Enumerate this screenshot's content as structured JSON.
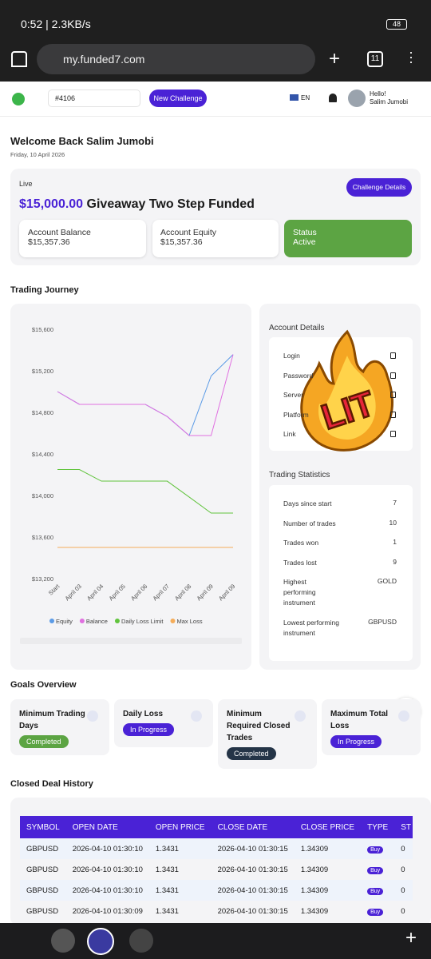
{
  "status_bar": {
    "time": "0:52 | 2.3KB/s",
    "battery": "48"
  },
  "browser": {
    "url": "my.funded7.com",
    "tabs": "11"
  },
  "header": {
    "account": "#4106",
    "new_challenge": "New Challenge",
    "language": "EN",
    "greeting": "Hello!",
    "user": "Salim Jumobi"
  },
  "welcome": {
    "title": "Welcome Back Salim Jumobi",
    "date": "Friday, 10 April 2026"
  },
  "challenge": {
    "status_tag": "Live",
    "amount": "$15,000.00",
    "name": "Giveaway Two Step Funded",
    "details_button": "Challenge Details",
    "balance_label": "Account Balance",
    "balance": "$15,357.36",
    "equity_label": "Account Equity",
    "equity": "$15,357.36",
    "status_label": "Status",
    "status": "Active"
  },
  "trading_journey": {
    "title": "Trading Journey"
  },
  "chart_data": {
    "type": "line",
    "categories": [
      "Start",
      "April 03",
      "April 04",
      "April 05",
      "April 06",
      "April 07",
      "April 08",
      "April 09",
      "April 09"
    ],
    "series": [
      {
        "name": "Equity",
        "color": "#5b9be6",
        "values": [
          15000,
          14877,
          14877,
          14877,
          14877,
          14760,
          14577,
          15150,
          15357
        ]
      },
      {
        "name": "Balance",
        "color": "#e070e0",
        "values": [
          15000,
          14877,
          14877,
          14877,
          14877,
          14760,
          14577,
          14577,
          15357
        ]
      },
      {
        "name": "Daily Loss Limit",
        "color": "#62c43e",
        "values": [
          14250,
          14250,
          14138,
          14138,
          14138,
          14138,
          13985,
          13831,
          13831
        ]
      },
      {
        "name": "Max Loss",
        "color": "#f5ad5a",
        "values": [
          13500,
          13500,
          13500,
          13500,
          13500,
          13500,
          13500,
          13500,
          13500
        ]
      }
    ],
    "ylim": [
      13200,
      15600
    ],
    "yticks": [
      {
        "value": 13200,
        "label": "$13,200"
      },
      {
        "value": 13600,
        "label": "$13,600"
      },
      {
        "value": 14000,
        "label": "$14,000"
      },
      {
        "value": 14400,
        "label": "$14,400"
      },
      {
        "value": 14800,
        "label": "$14,800"
      },
      {
        "value": 15200,
        "label": "$15,200"
      },
      {
        "value": 15600,
        "label": "$15,600"
      }
    ],
    "grid": false,
    "legend": "bottom"
  },
  "account_details": {
    "title": "Account Details",
    "fields": [
      "Login",
      "Password",
      "Server",
      "Platform",
      "Link"
    ]
  },
  "sticker": "LIT",
  "trading_statistics": {
    "title": "Trading Statistics",
    "rows": [
      [
        "Days since start",
        "7"
      ],
      [
        "Number of trades",
        "10"
      ],
      [
        "Trades won",
        "1"
      ],
      [
        "Trades lost",
        "9"
      ],
      [
        "Highest performing instrument",
        "GOLD"
      ],
      [
        "Lowest performing instrument",
        "GBPUSD"
      ]
    ]
  },
  "goals": {
    "title": "Goals Overview",
    "items": [
      {
        "name": "Minimum Trading Days",
        "status": "Completed"
      },
      {
        "name": "Daily Loss",
        "status": "In Progress"
      },
      {
        "name": "Minimum Required Closed Trades",
        "status": "Completed"
      },
      {
        "name": "Maximum Total Loss",
        "status": "In Progress"
      }
    ]
  },
  "deals": {
    "title": "Closed Deal History",
    "columns": [
      "SYMBOL",
      "OPEN DATE",
      "OPEN PRICE",
      "CLOSE DATE",
      "CLOSE PRICE",
      "TYPE",
      "ST"
    ],
    "rows": [
      [
        "GBPUSD",
        "2026-04-10 01:30:10",
        "1.3431",
        "2026-04-10 01:30:15",
        "1.34309",
        "Buy",
        "0"
      ],
      [
        "GBPUSD",
        "2026-04-10 01:30:10",
        "1.3431",
        "2026-04-10 01:30:15",
        "1.34309",
        "Buy",
        "0"
      ],
      [
        "GBPUSD",
        "2026-04-10 01:30:10",
        "1.3431",
        "2026-04-10 01:30:15",
        "1.34309",
        "Buy",
        "0"
      ],
      [
        "GBPUSD",
        "2026-04-10 01:30:09",
        "1.3431",
        "2026-04-10 01:30:15",
        "1.34309",
        "Buy",
        "0"
      ]
    ]
  }
}
